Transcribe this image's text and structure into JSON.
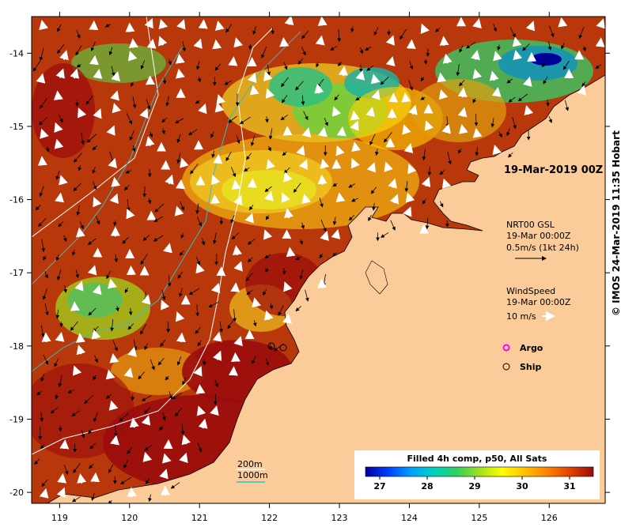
{
  "map": {
    "x_ticks": [
      "119",
      "120",
      "121",
      "122",
      "123",
      "124",
      "125",
      "126"
    ],
    "y_ticks": [
      "-14",
      "-15",
      "-16",
      "-17",
      "-18",
      "-19",
      "-20"
    ],
    "date_label": "19-Mar-2019 00Z",
    "credit": "© IMOS 24-Mar-2019 11:35 Hobart",
    "land_color": "#fccb9a",
    "ocean_warm_color": "#9b0c0c",
    "current_legend": {
      "title": "NRT00 GSL",
      "time": "19-Mar 00:00Z",
      "scale": "0.5m/s (1kt 24h)"
    },
    "wind_legend": {
      "title": "WindSpeed",
      "time": "19-Mar 00:00Z",
      "scale": "10 m/s"
    },
    "markers": {
      "argo_label": "Argo",
      "ship_label": "Ship",
      "argo_color": "#ff00ff"
    },
    "contours": {
      "c200_label": "200m",
      "c1000_label": "1000m",
      "c200_color": "#ffffff",
      "c1000_color": "#30c0c0"
    },
    "colorbar": {
      "title": "Filled 4h comp, p50, All Sats",
      "ticks": [
        "27",
        "28",
        "29",
        "30",
        "31"
      ],
      "min": 26.7,
      "max": 31.5,
      "colors": [
        "#00009a",
        "#0040ff",
        "#00a0ff",
        "#00d0c0",
        "#30d060",
        "#a0e020",
        "#ffff00",
        "#ffc000",
        "#ff8000",
        "#e04000",
        "#9b0c0c"
      ]
    }
  }
}
